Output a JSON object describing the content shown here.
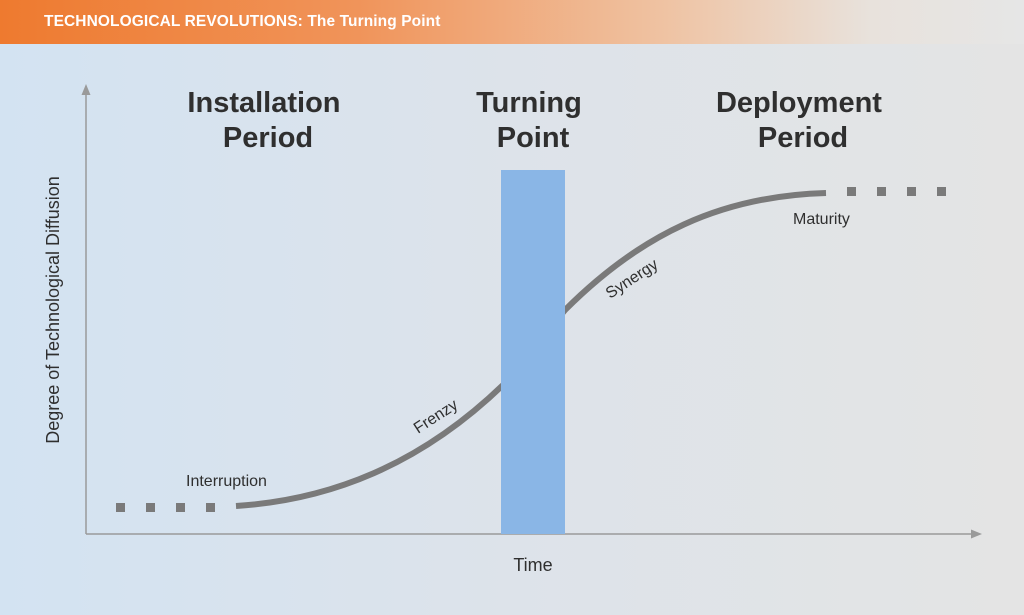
{
  "header": {
    "title": "TECHNOLOGICAL REVOLUTIONS: The Turning Point"
  },
  "periods": {
    "installation": [
      "Installation",
      "Period"
    ],
    "turning_point": [
      "Turning",
      "Point"
    ],
    "deployment": [
      "Deployment",
      "Period"
    ]
  },
  "phases": {
    "interruption": "Interruption",
    "frenzy": "Frenzy",
    "synergy": "Synergy",
    "maturity": "Maturity"
  },
  "axes": {
    "x_label": "Time",
    "y_label": "Degree of Technological Diffusion"
  },
  "colors": {
    "header_orange": "#ee7a2f",
    "curve_gray": "#7a7a7a",
    "turning_point_bar": "#8ab6e6",
    "axis_gray": "#9a9a9a",
    "text_dark": "#2f2f2f"
  }
}
